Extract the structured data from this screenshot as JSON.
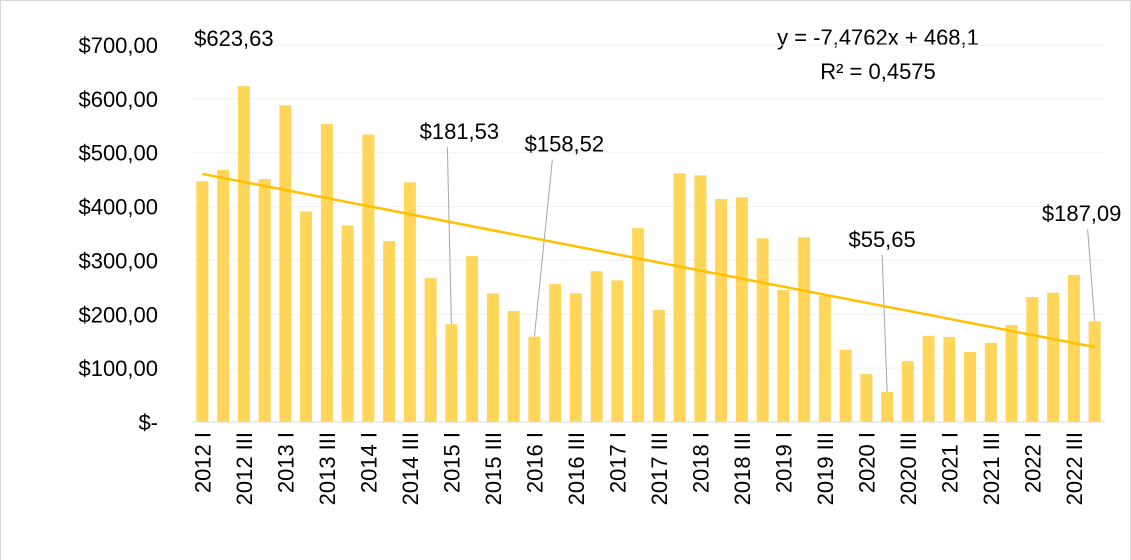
{
  "chart_data": {
    "type": "bar",
    "categories": [
      "2012 I",
      null,
      "2012 III",
      null,
      "2013 I",
      null,
      "2013 III",
      null,
      "2014 I",
      null,
      "2014 III",
      null,
      "2015 I",
      null,
      "2015 III",
      null,
      "2016 I",
      null,
      "2016 III",
      null,
      "2017 I",
      null,
      "2017 III",
      null,
      "2018 I",
      null,
      "2018 III",
      null,
      "2019 I",
      null,
      "2019 III",
      null,
      "2020 I",
      null,
      "2020 III",
      null,
      "2021 I",
      null,
      "2021 III",
      null,
      "2022 I",
      null,
      "2022 III",
      null
    ],
    "values": [
      447,
      468,
      623.63,
      451,
      588,
      391,
      553,
      365,
      534,
      336,
      445,
      267,
      181.53,
      308,
      239,
      206,
      158.52,
      256,
      239,
      280,
      263,
      360,
      208,
      462,
      458,
      414,
      417,
      341,
      245,
      343,
      234,
      134,
      89,
      55.65,
      113,
      160,
      158,
      130,
      147,
      180,
      232,
      240,
      273,
      187.09
    ],
    "value_labels": [
      null,
      null,
      "$623,63",
      null,
      null,
      null,
      null,
      null,
      null,
      null,
      null,
      null,
      "$181,53",
      null,
      null,
      null,
      "$158,52",
      null,
      null,
      null,
      null,
      null,
      null,
      null,
      null,
      null,
      null,
      null,
      null,
      null,
      null,
      null,
      null,
      "$55,65",
      null,
      null,
      null,
      null,
      null,
      null,
      null,
      null,
      null,
      "$187,09"
    ],
    "color": "#FFD55A",
    "ylim": [
      0,
      700
    ],
    "yticks": [
      {
        "value": 0,
        "label": "$-"
      },
      {
        "value": 100,
        "label": "$100,00"
      },
      {
        "value": 200,
        "label": "$200,00"
      },
      {
        "value": 300,
        "label": "$300,00"
      },
      {
        "value": 400,
        "label": "$400,00"
      },
      {
        "value": 500,
        "label": "$500,00"
      },
      {
        "value": 600,
        "label": "$600,00"
      },
      {
        "value": 700,
        "label": "$700,00"
      }
    ],
    "grid": true,
    "trendline": {
      "slope": -7.4762,
      "intercept": 468.1,
      "color": "#FFC000",
      "equation": "y = -7,4762x + 468,1",
      "r2": "R² = 0,4575"
    }
  }
}
